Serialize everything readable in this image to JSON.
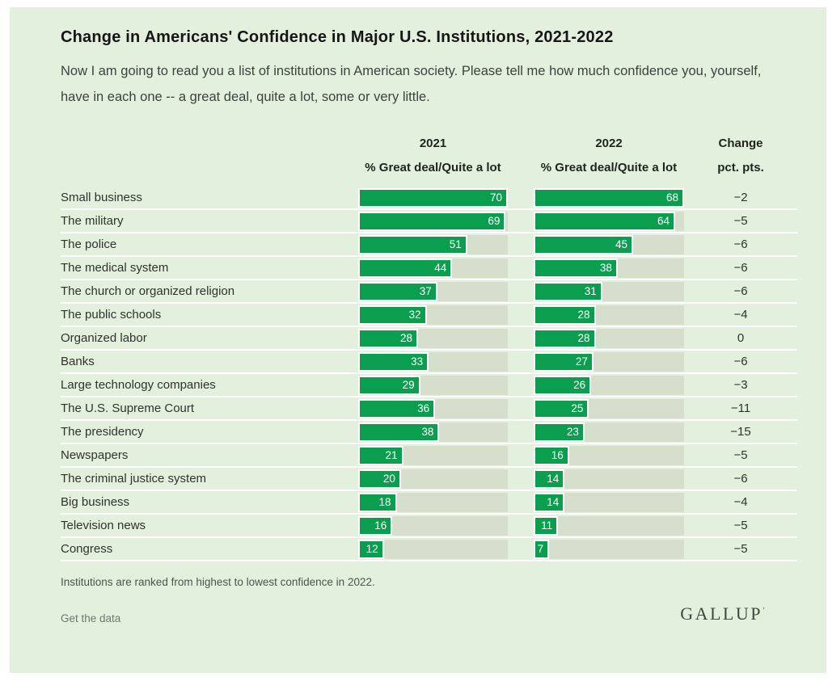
{
  "header": {
    "title": "Change in Americans' Confidence in Major U.S. Institutions, 2021-2022",
    "subtitle": "Now I am going to read you a list of institutions in American society. Please tell me how much confidence you, yourself, have in each one -- a great deal, quite a lot, some or very little."
  },
  "columns": {
    "col2021": {
      "year": "2021",
      "measure": "% Great deal/Quite a lot"
    },
    "col2022": {
      "year": "2022",
      "measure": "% Great deal/Quite a lot"
    },
    "change": {
      "line1": "Change",
      "line2": "pct. pts."
    }
  },
  "chart_data": {
    "type": "bar",
    "title": "Change in Americans' Confidence in Major U.S. Institutions, 2021-2022",
    "layout": "horizontal paired bars per institution, sorted by 2022 value descending; each year column scaled to its own maximum",
    "categories": [
      "Small business",
      "The military",
      "The police",
      "The medical system",
      "The church or organized religion",
      "The public schools",
      "Organized labor",
      "Banks",
      "Large technology companies",
      "The U.S. Supreme Court",
      "The presidency",
      "Newspapers",
      "The criminal justice system",
      "Big business",
      "Television news",
      "Congress"
    ],
    "series": [
      {
        "name": "2021 % Great deal/Quite a lot",
        "values": [
          70,
          69,
          51,
          44,
          37,
          32,
          28,
          33,
          29,
          36,
          38,
          21,
          20,
          18,
          16,
          12
        ]
      },
      {
        "name": "2022 % Great deal/Quite a lot",
        "values": [
          68,
          64,
          45,
          38,
          31,
          28,
          28,
          27,
          26,
          25,
          23,
          16,
          14,
          14,
          11,
          7
        ]
      },
      {
        "name": "Change pct. pts.",
        "values": [
          -2,
          -5,
          -6,
          -6,
          -6,
          -4,
          0,
          -6,
          -3,
          -11,
          -15,
          -5,
          -6,
          -4,
          -5,
          -5
        ]
      }
    ],
    "scale_max": {
      "y2021": 70,
      "y2022": 68
    },
    "bar_color": "#0a9e4e",
    "track_color": "#d5dfcc",
    "background_color": "#e4f0de",
    "value_label_color": "#ffffff"
  },
  "footer": {
    "footnote": "Institutions are ranked from highest to lowest confidence in 2022.",
    "get_data_label": "Get the data",
    "logo": "GALLUP",
    "logo_mark": "’"
  }
}
